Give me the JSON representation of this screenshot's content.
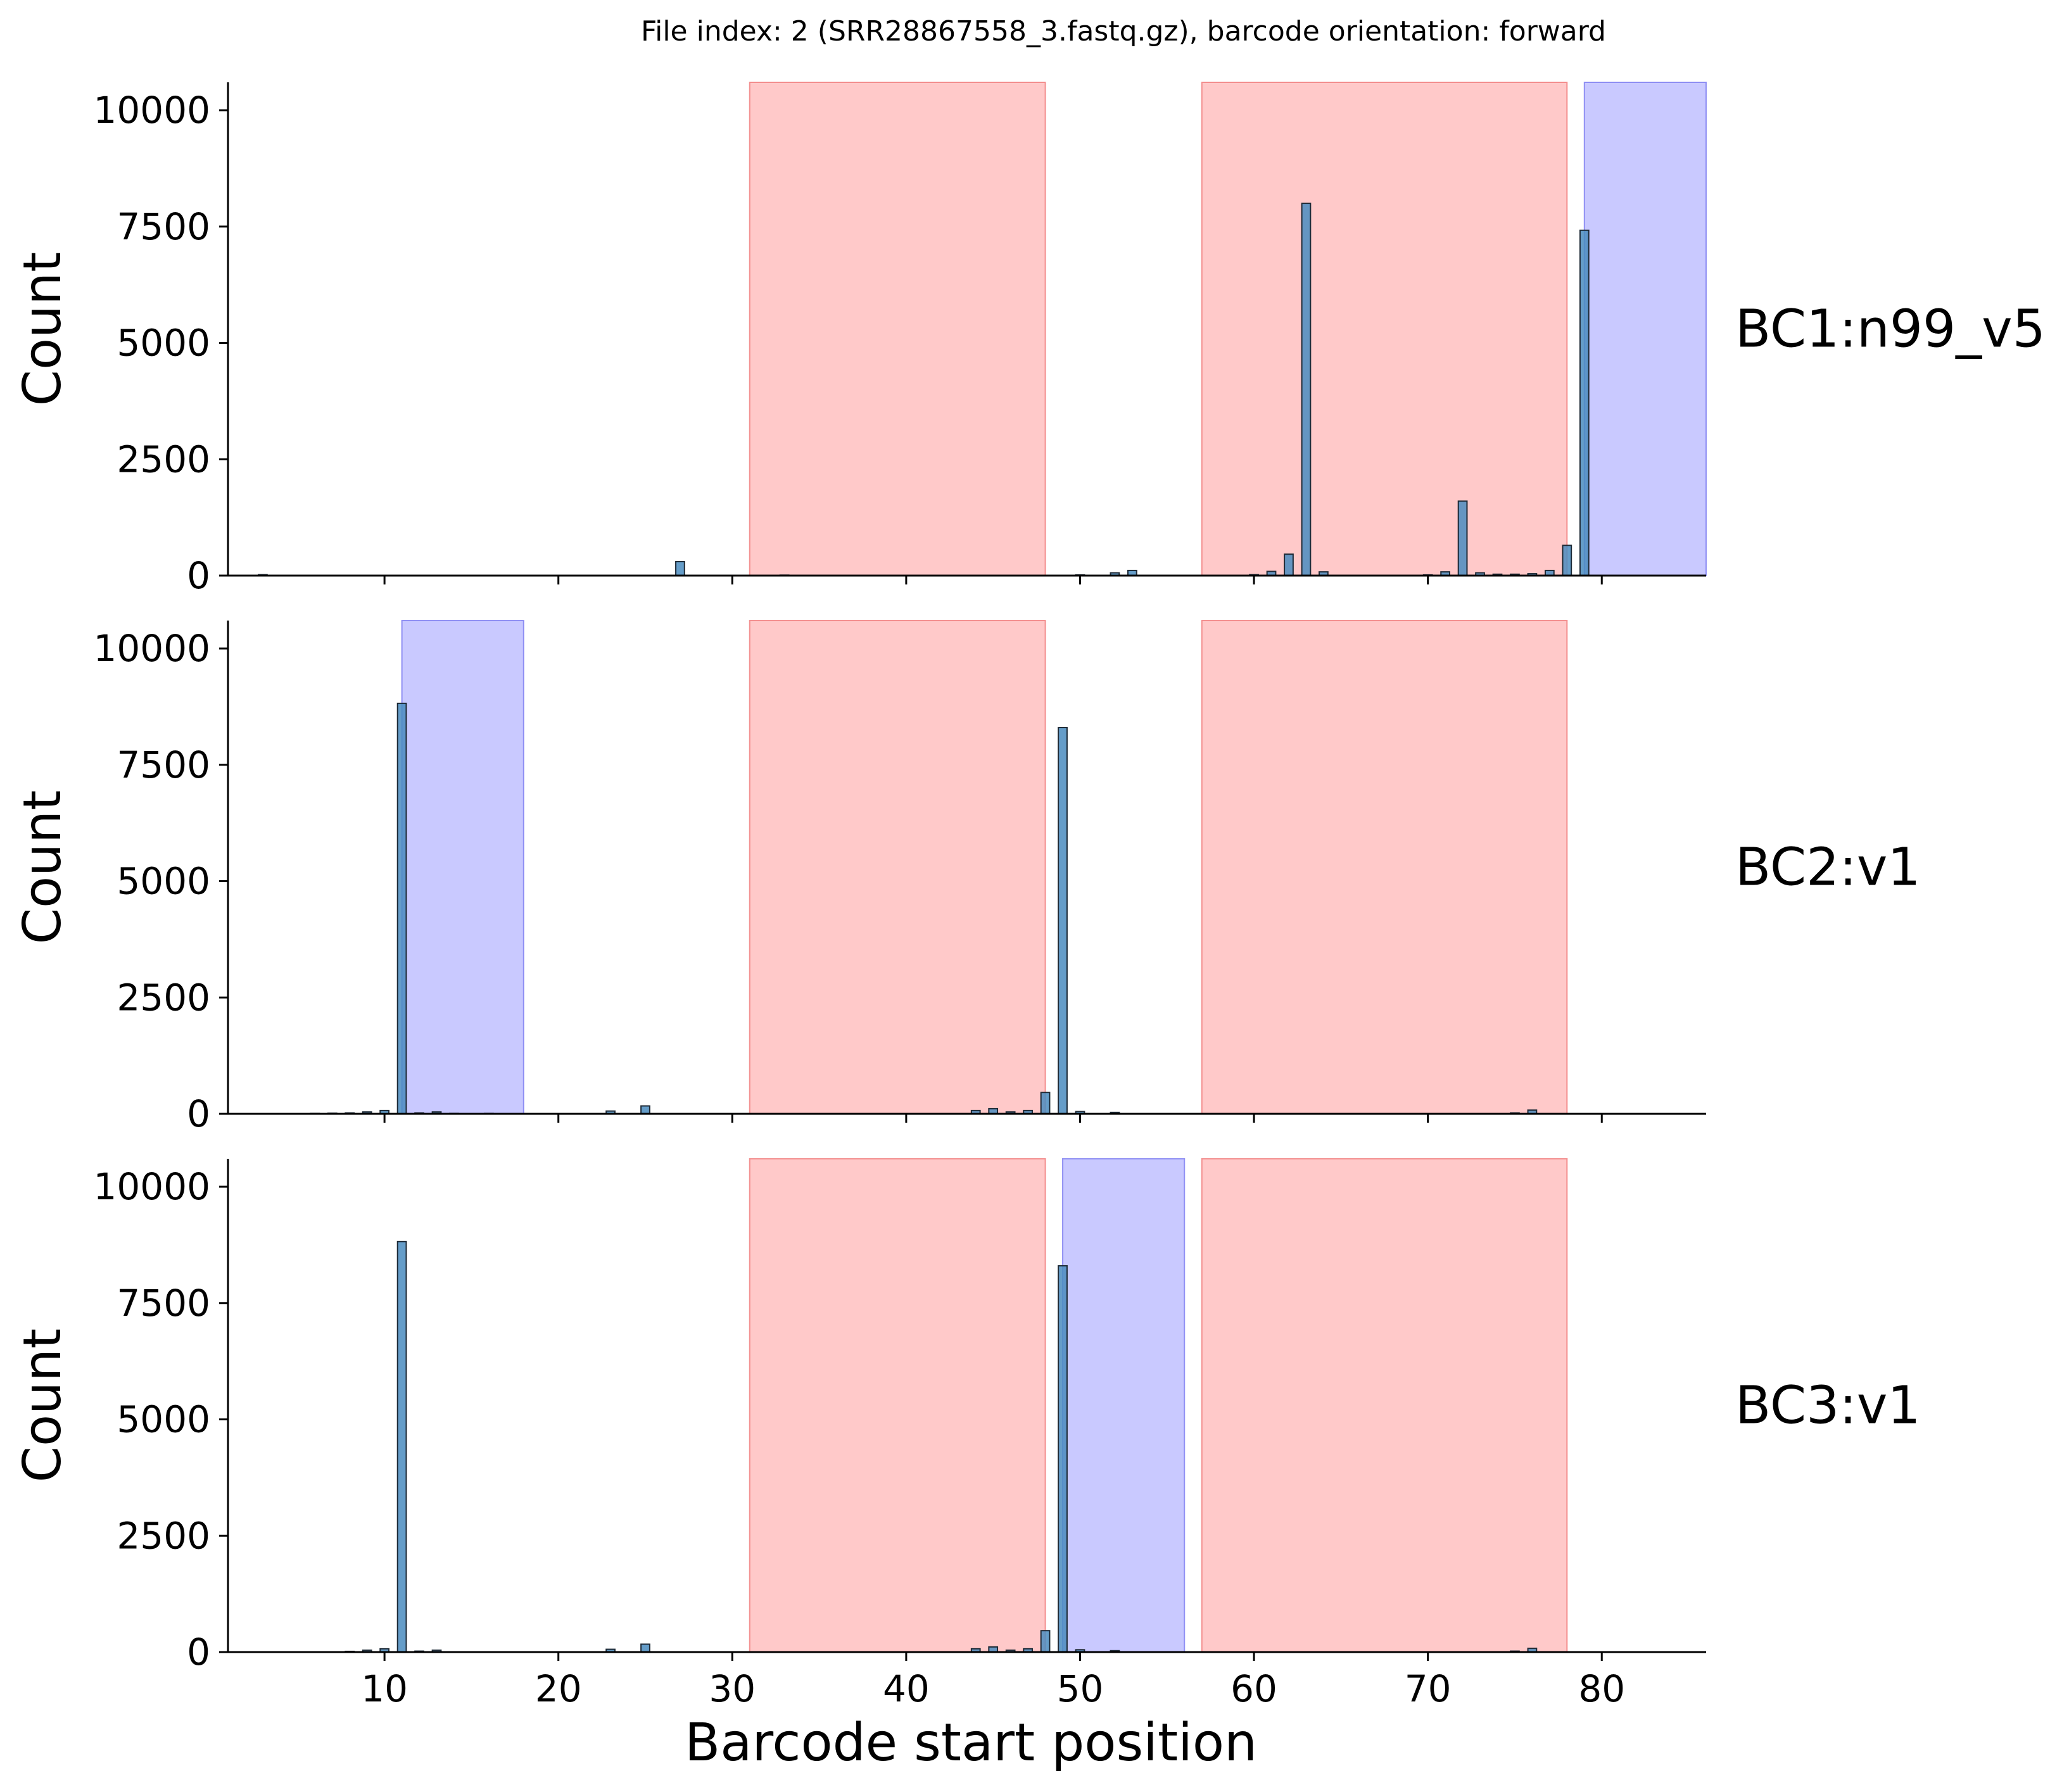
{
  "chart_data": {
    "type": "bar",
    "title": "File index: 2 (SRR28867558_3.fastq.gz), barcode orientation: forward",
    "xlabel": "Barcode start position",
    "ylabel": "Count",
    "xlim": [
      1,
      86
    ],
    "ylim": [
      0,
      10600
    ],
    "xticks": [
      "10",
      "20",
      "30",
      "40",
      "50",
      "60",
      "70",
      "80"
    ],
    "yticks": [
      "0",
      "2500",
      "5000",
      "7500",
      "10000"
    ],
    "grid": false,
    "legend": "none",
    "colors": {
      "bar": "#4a8cc0",
      "bar_edge": "#1e2a36",
      "red_region": "#ff9c9c",
      "red_edge": "#f07a7a",
      "blue_region": "#9c9cff",
      "blue_edge": "#7b7bf0",
      "axis": "#000000"
    },
    "panels": [
      {
        "label": "BC1:n99_v5",
        "red_regions": [
          [
            31,
            48
          ],
          [
            57,
            78
          ]
        ],
        "blue_regions": [
          [
            79,
            86
          ]
        ],
        "bars": [
          [
            3,
            20
          ],
          [
            27,
            300
          ],
          [
            33,
            10
          ],
          [
            50,
            15
          ],
          [
            52,
            60
          ],
          [
            53,
            110
          ],
          [
            60,
            20
          ],
          [
            61,
            90
          ],
          [
            62,
            460
          ],
          [
            63,
            8000
          ],
          [
            64,
            80
          ],
          [
            70,
            15
          ],
          [
            71,
            80
          ],
          [
            72,
            1600
          ],
          [
            73,
            60
          ],
          [
            74,
            30
          ],
          [
            75,
            30
          ],
          [
            76,
            40
          ],
          [
            77,
            110
          ],
          [
            78,
            650
          ],
          [
            79,
            7420
          ]
        ]
      },
      {
        "label": "BC2:v1",
        "red_regions": [
          [
            31,
            48
          ],
          [
            57,
            78
          ]
        ],
        "blue_regions": [
          [
            11,
            18
          ]
        ],
        "bars": [
          [
            6,
            10
          ],
          [
            7,
            15
          ],
          [
            8,
            20
          ],
          [
            9,
            40
          ],
          [
            10,
            70
          ],
          [
            11,
            8820
          ],
          [
            12,
            20
          ],
          [
            13,
            40
          ],
          [
            14,
            10
          ],
          [
            16,
            10
          ],
          [
            23,
            60
          ],
          [
            25,
            170
          ],
          [
            44,
            70
          ],
          [
            45,
            110
          ],
          [
            46,
            40
          ],
          [
            47,
            70
          ],
          [
            48,
            460
          ],
          [
            49,
            8300
          ],
          [
            50,
            50
          ],
          [
            52,
            30
          ],
          [
            75,
            20
          ],
          [
            76,
            80
          ]
        ]
      },
      {
        "label": "BC3:v1",
        "red_regions": [
          [
            31,
            48
          ],
          [
            57,
            78
          ]
        ],
        "blue_regions": [
          [
            49,
            56
          ]
        ],
        "bars": [
          [
            8,
            15
          ],
          [
            9,
            40
          ],
          [
            10,
            70
          ],
          [
            11,
            8820
          ],
          [
            12,
            20
          ],
          [
            13,
            40
          ],
          [
            23,
            60
          ],
          [
            25,
            170
          ],
          [
            44,
            70
          ],
          [
            45,
            110
          ],
          [
            46,
            40
          ],
          [
            47,
            70
          ],
          [
            48,
            460
          ],
          [
            49,
            8300
          ],
          [
            50,
            50
          ],
          [
            52,
            30
          ],
          [
            75,
            20
          ],
          [
            76,
            80
          ]
        ]
      }
    ]
  }
}
